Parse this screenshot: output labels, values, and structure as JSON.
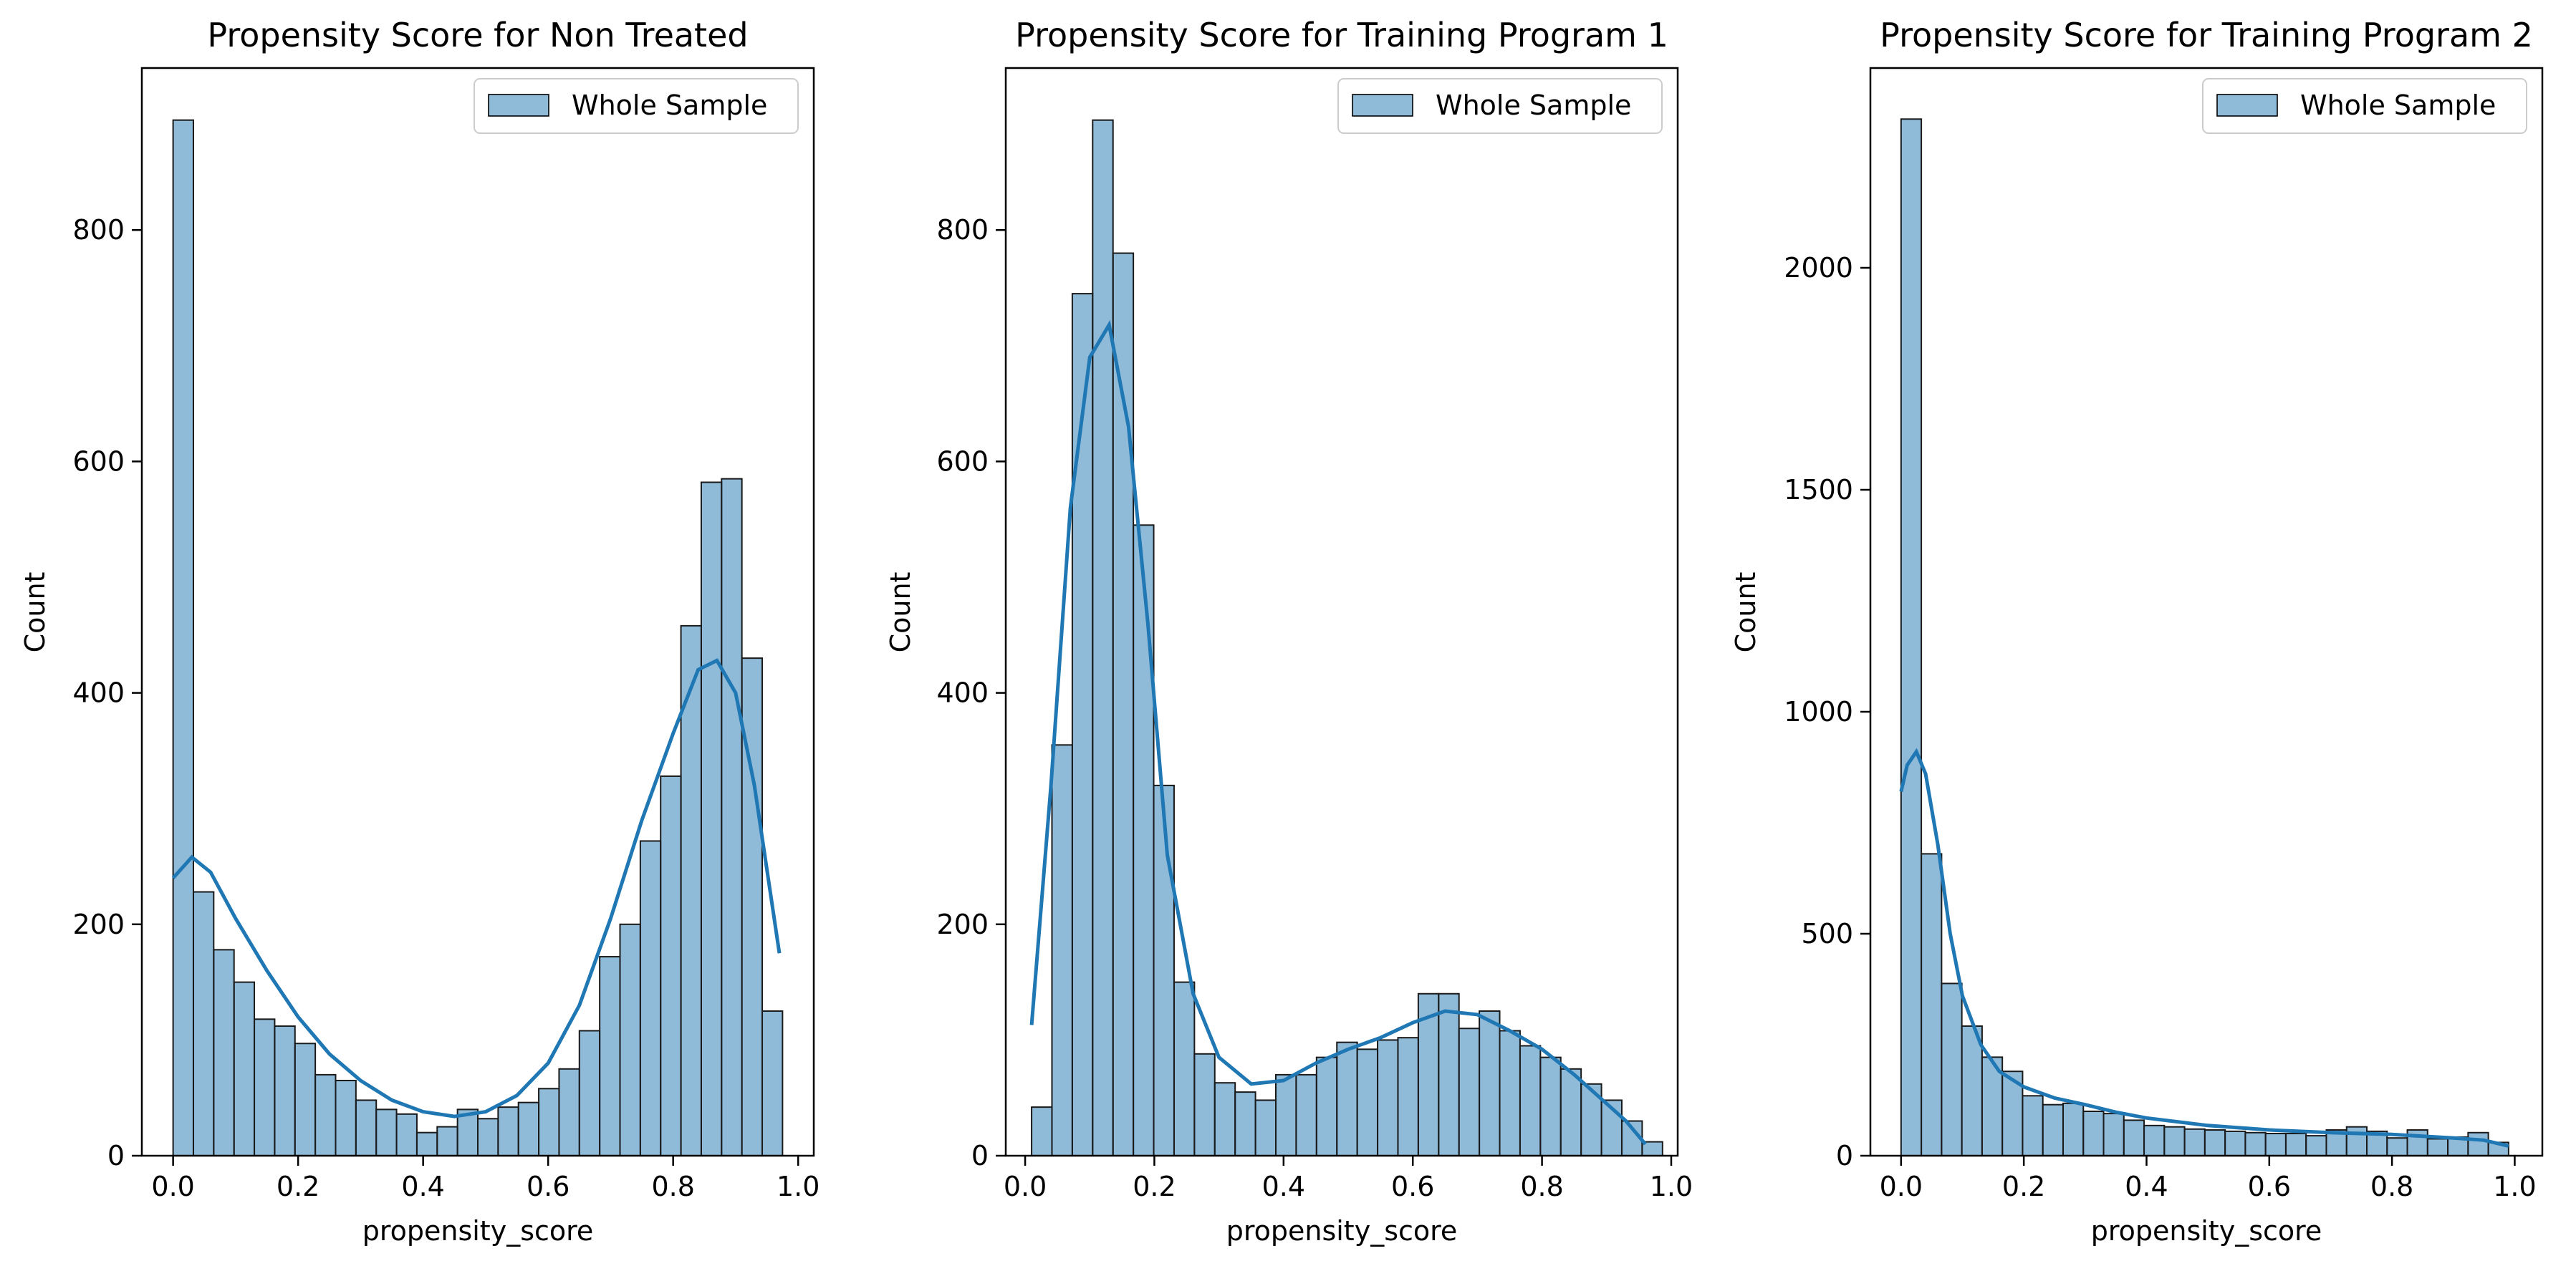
{
  "chart_data": [
    {
      "type": "bar",
      "title": "Propensity Score for Non Treated",
      "xlabel": "propensity_score",
      "ylabel": "Count",
      "xlim": [
        -0.05,
        1.025
      ],
      "ylim": [
        0,
        940
      ],
      "xticks": [
        0.0,
        0.2,
        0.4,
        0.6,
        0.8,
        1.0
      ],
      "xtick_labels": [
        "0.0",
        "0.2",
        "0.4",
        "0.6",
        "0.8",
        "1.0"
      ],
      "yticks": [
        0,
        200,
        400,
        600,
        800
      ],
      "ytick_labels": [
        "0",
        "200",
        "400",
        "600",
        "800"
      ],
      "legend": {
        "label": "Whole Sample",
        "loc": "upper right"
      },
      "bin_start": 0.0,
      "bin_width": 0.0325,
      "values": [
        895,
        228,
        178,
        150,
        118,
        112,
        97,
        70,
        65,
        48,
        40,
        36,
        20,
        25,
        40,
        32,
        42,
        46,
        58,
        75,
        108,
        172,
        200,
        272,
        328,
        458,
        582,
        585,
        430,
        125
      ],
      "kde": [
        [
          0.0,
          240
        ],
        [
          0.03,
          258
        ],
        [
          0.06,
          245
        ],
        [
          0.1,
          205
        ],
        [
          0.15,
          160
        ],
        [
          0.2,
          120
        ],
        [
          0.25,
          88
        ],
        [
          0.3,
          65
        ],
        [
          0.35,
          48
        ],
        [
          0.4,
          38
        ],
        [
          0.45,
          34
        ],
        [
          0.5,
          38
        ],
        [
          0.55,
          52
        ],
        [
          0.6,
          80
        ],
        [
          0.65,
          130
        ],
        [
          0.7,
          205
        ],
        [
          0.75,
          290
        ],
        [
          0.8,
          365
        ],
        [
          0.84,
          420
        ],
        [
          0.87,
          428
        ],
        [
          0.9,
          400
        ],
        [
          0.93,
          320
        ],
        [
          0.97,
          175
        ]
      ]
    },
    {
      "type": "bar",
      "title": "Propensity Score for Training Program 1",
      "xlabel": "propensity_score",
      "ylabel": "Count",
      "xlim": [
        -0.03,
        1.01
      ],
      "ylim": [
        0,
        940
      ],
      "xticks": [
        0.0,
        0.2,
        0.4,
        0.6,
        0.8,
        1.0
      ],
      "xtick_labels": [
        "0.0",
        "0.2",
        "0.4",
        "0.6",
        "0.8",
        "1.0"
      ],
      "yticks": [
        0,
        200,
        400,
        600,
        800
      ],
      "ytick_labels": [
        "0",
        "200",
        "400",
        "600",
        "800"
      ],
      "legend": {
        "label": "Whole Sample",
        "loc": "upper right"
      },
      "bin_start": 0.01,
      "bin_width": 0.0315,
      "values": [
        42,
        355,
        745,
        895,
        780,
        545,
        320,
        150,
        88,
        63,
        55,
        48,
        70,
        70,
        85,
        98,
        92,
        100,
        102,
        140,
        140,
        110,
        125,
        108,
        95,
        85,
        75,
        62,
        48,
        30,
        12
      ],
      "kde": [
        [
          0.01,
          113
        ],
        [
          0.04,
          320
        ],
        [
          0.07,
          560
        ],
        [
          0.1,
          690
        ],
        [
          0.13,
          718
        ],
        [
          0.16,
          630
        ],
        [
          0.19,
          460
        ],
        [
          0.22,
          260
        ],
        [
          0.26,
          140
        ],
        [
          0.3,
          85
        ],
        [
          0.35,
          62
        ],
        [
          0.4,
          65
        ],
        [
          0.45,
          80
        ],
        [
          0.5,
          92
        ],
        [
          0.55,
          102
        ],
        [
          0.6,
          115
        ],
        [
          0.65,
          125
        ],
        [
          0.7,
          122
        ],
        [
          0.75,
          108
        ],
        [
          0.8,
          92
        ],
        [
          0.85,
          70
        ],
        [
          0.9,
          45
        ],
        [
          0.93,
          30
        ],
        [
          0.96,
          10
        ]
      ]
    },
    {
      "type": "bar",
      "title": "Propensity Score for Training Program 2",
      "xlabel": "propensity_score",
      "ylabel": "Count",
      "xlim": [
        -0.05,
        1.045
      ],
      "ylim": [
        0,
        2450
      ],
      "xticks": [
        0.0,
        0.2,
        0.4,
        0.6,
        0.8,
        1.0
      ],
      "xtick_labels": [
        "0.0",
        "0.2",
        "0.4",
        "0.6",
        "0.8",
        "1.0"
      ],
      "yticks": [
        0,
        500,
        1000,
        1500,
        2000
      ],
      "ytick_labels": [
        "0",
        "500",
        "1000",
        "1500",
        "2000"
      ],
      "legend": {
        "label": "Whole Sample",
        "loc": "upper right"
      },
      "bin_start": 0.0,
      "bin_width": 0.033,
      "values": [
        2335,
        680,
        388,
        292,
        222,
        190,
        135,
        115,
        118,
        100,
        95,
        80,
        68,
        65,
        60,
        58,
        55,
        52,
        50,
        50,
        45,
        58,
        65,
        55,
        40,
        58,
        38,
        42,
        52,
        30
      ],
      "kde": [
        [
          0.0,
          820
        ],
        [
          0.01,
          880
        ],
        [
          0.025,
          910
        ],
        [
          0.04,
          860
        ],
        [
          0.06,
          700
        ],
        [
          0.08,
          500
        ],
        [
          0.1,
          360
        ],
        [
          0.13,
          250
        ],
        [
          0.16,
          190
        ],
        [
          0.2,
          155
        ],
        [
          0.25,
          130
        ],
        [
          0.3,
          115
        ],
        [
          0.35,
          98
        ],
        [
          0.4,
          85
        ],
        [
          0.5,
          68
        ],
        [
          0.6,
          58
        ],
        [
          0.7,
          52
        ],
        [
          0.8,
          48
        ],
        [
          0.9,
          40
        ],
        [
          0.95,
          35
        ],
        [
          0.99,
          22
        ]
      ]
    }
  ]
}
